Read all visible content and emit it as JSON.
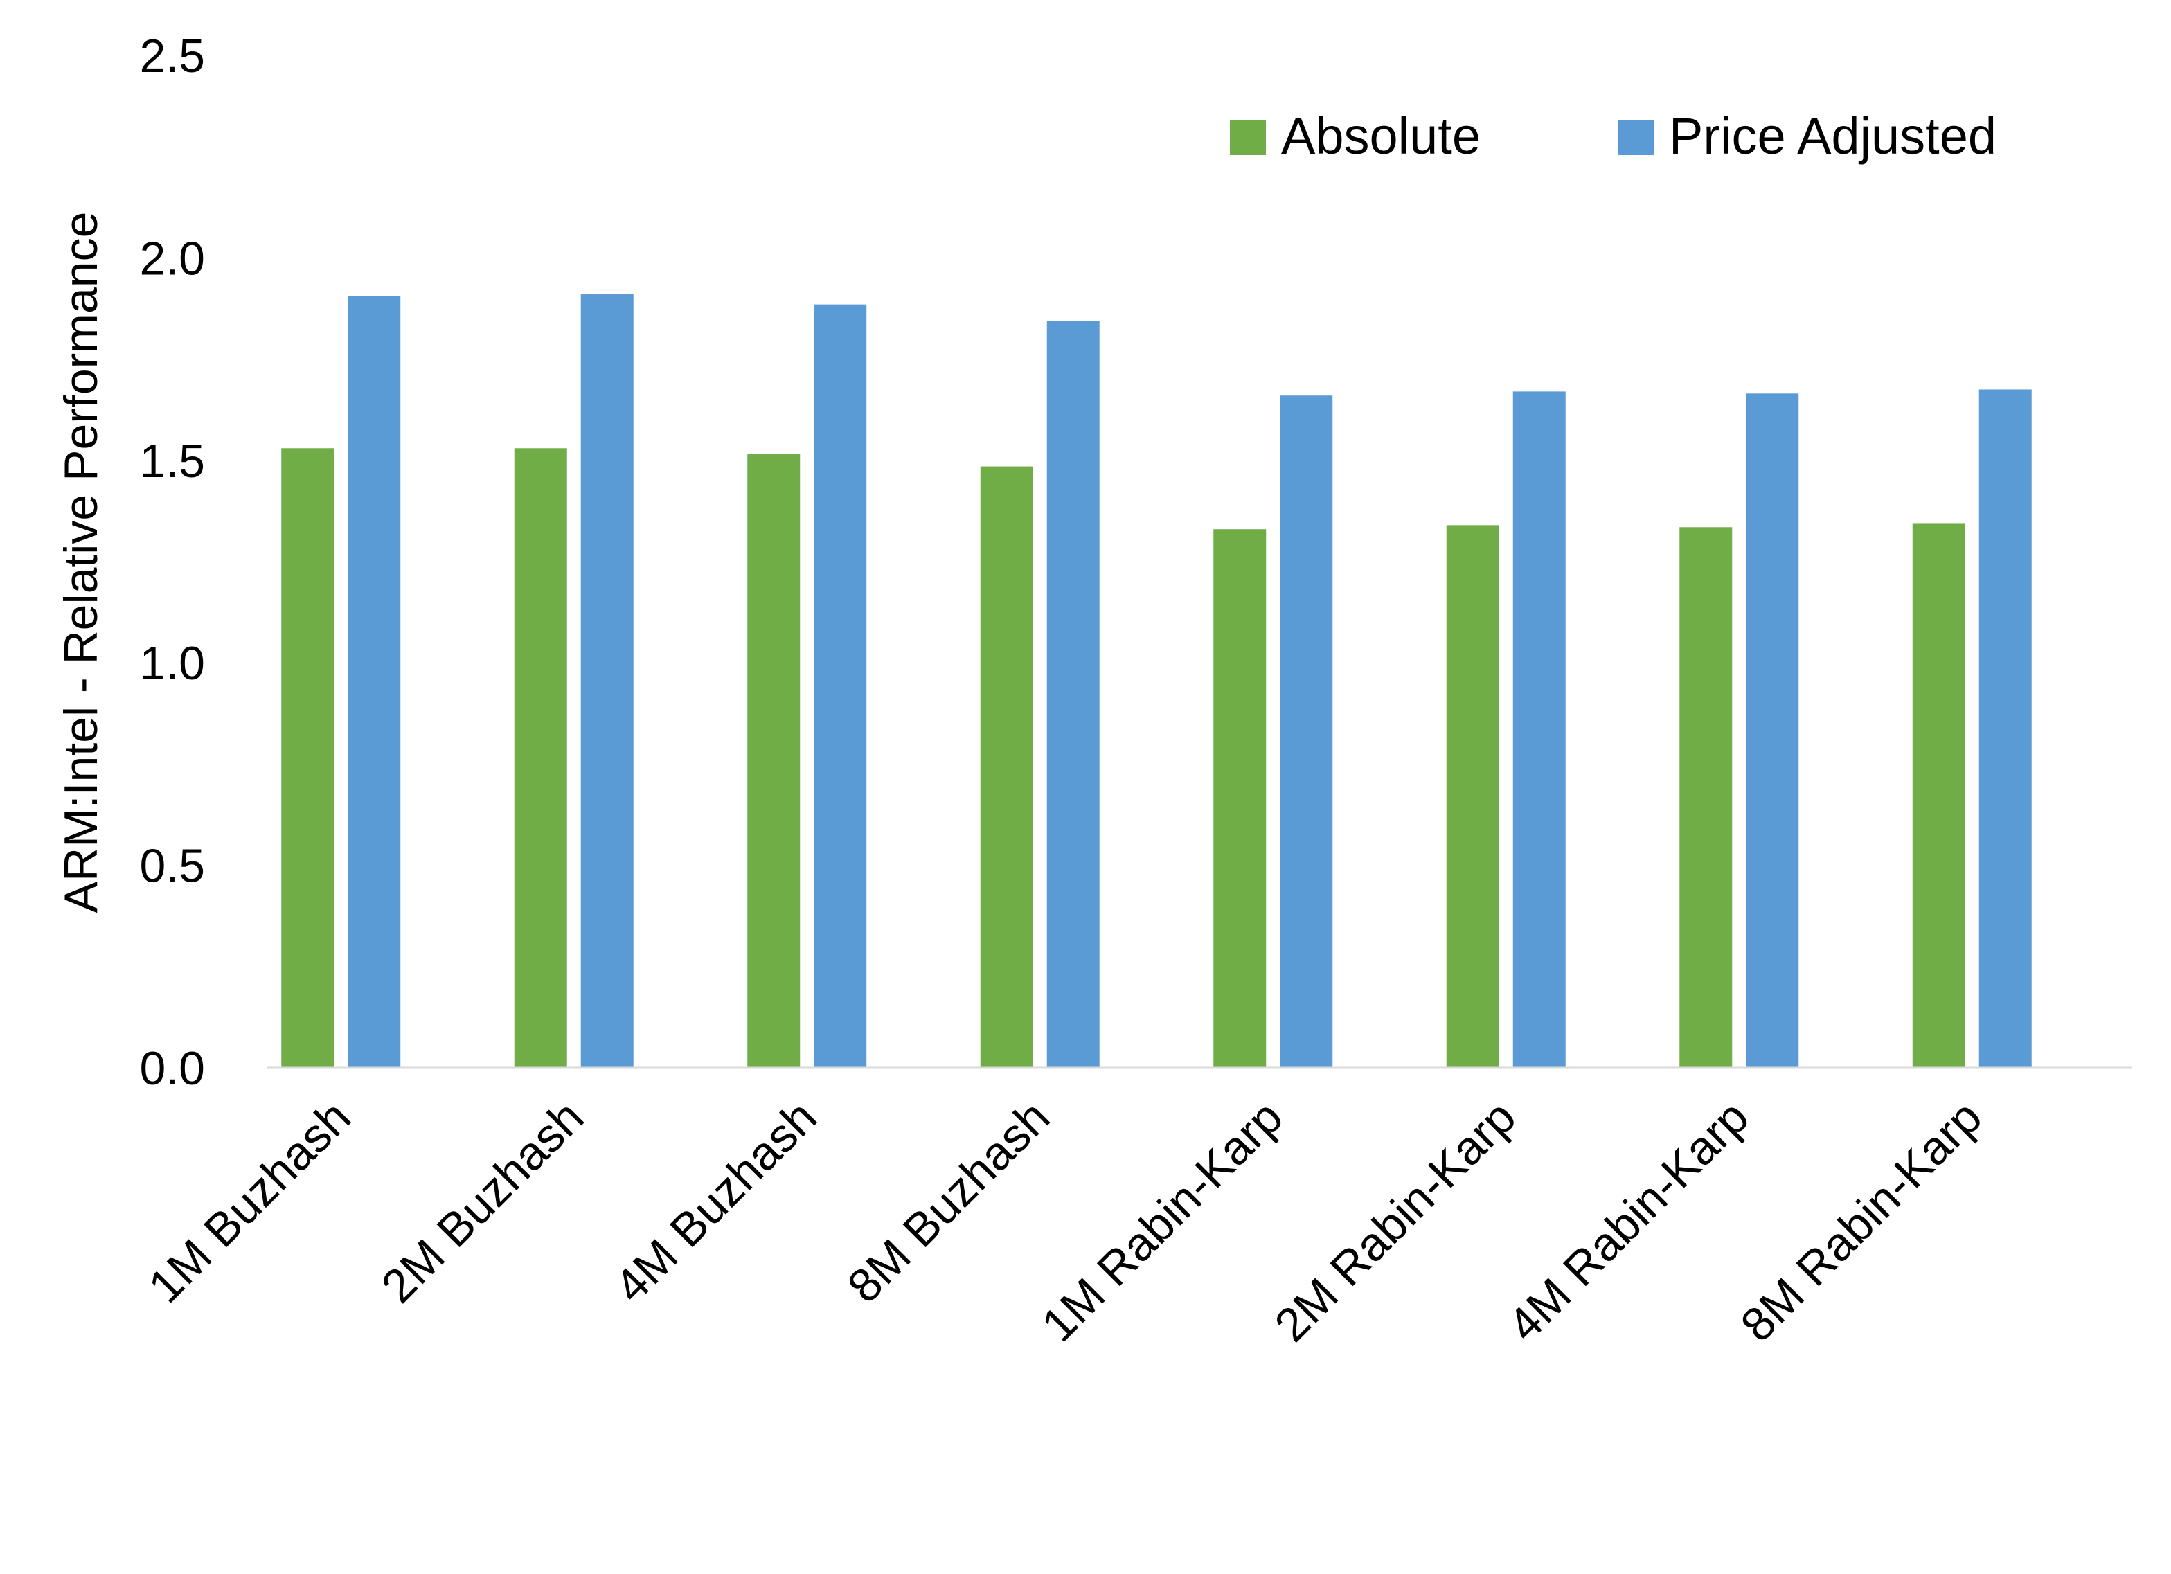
{
  "chart_data": {
    "type": "bar",
    "title": "",
    "xlabel": "",
    "ylabel": "ARM:Intel - Relative Performance",
    "ylim": [
      0,
      2.5
    ],
    "yticks": [
      "0.0",
      "0.5",
      "1.0",
      "1.5",
      "2.0",
      "2.5"
    ],
    "grid": false,
    "legend_position": "top-right",
    "categories": [
      "1M Buzhash",
      "2M Buzhash",
      "4M Buzhash",
      "8M Buzhash",
      "1M Rabin-Karp",
      "2M Rabin-Karp",
      "4M Rabin-Karp",
      "8M Rabin-Karp"
    ],
    "series": [
      {
        "name": "Absolute",
        "color": "#70AD47",
        "values": [
          1.53,
          1.53,
          1.515,
          1.485,
          1.33,
          1.34,
          1.335,
          1.345
        ]
      },
      {
        "name": "Price Adjusted",
        "color": "#5B9BD5",
        "values": [
          1.905,
          1.91,
          1.885,
          1.845,
          1.66,
          1.67,
          1.665,
          1.675
        ]
      }
    ]
  }
}
